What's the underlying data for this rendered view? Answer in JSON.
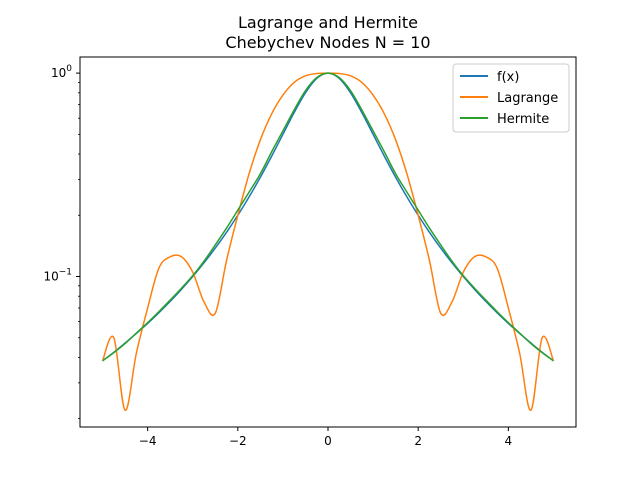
{
  "chart_data": {
    "type": "line",
    "title": "Lagrange and Hermite",
    "subtitle": "Chebychev Nodes N = 10",
    "xlabel": "",
    "ylabel": "",
    "xlim": [
      -5.5,
      5.5
    ],
    "ylim": [
      0.0182,
      1.2
    ],
    "yscale": "log",
    "grid": false,
    "legend_position": "top-right",
    "x_ticks": [
      {
        "value": -4,
        "label": "−4"
      },
      {
        "value": -2,
        "label": "−2"
      },
      {
        "value": 0,
        "label": "0"
      },
      {
        "value": 2,
        "label": "2"
      },
      {
        "value": 4,
        "label": "4"
      }
    ],
    "y_ticks": [
      {
        "value": 0.1,
        "base": "10",
        "exp": "−1"
      },
      {
        "value": 1,
        "base": "10",
        "exp": "0"
      }
    ],
    "x": [
      -5.0,
      -4.75,
      -4.5,
      -4.25,
      -4.0,
      -3.75,
      -3.5,
      -3.25,
      -3.0,
      -2.75,
      -2.5,
      -2.25,
      -2.0,
      -1.75,
      -1.5,
      -1.25,
      -1.0,
      -0.75,
      -0.5,
      -0.25,
      0.0,
      0.25,
      0.5,
      0.75,
      1.0,
      1.25,
      1.5,
      1.75,
      2.0,
      2.25,
      2.5,
      2.75,
      3.0,
      3.25,
      3.5,
      3.75,
      4.0,
      4.25,
      4.5,
      4.75,
      5.0
    ],
    "series": [
      {
        "name": "f(x)",
        "color": "#1f77b4",
        "values": [
          0.0385,
          0.0424,
          0.0471,
          0.0525,
          0.0588,
          0.0664,
          0.0755,
          0.0865,
          0.1,
          0.1168,
          0.1379,
          0.165,
          0.2,
          0.2462,
          0.3077,
          0.3902,
          0.5,
          0.64,
          0.8,
          0.9412,
          1.0,
          0.9412,
          0.8,
          0.64,
          0.5,
          0.3902,
          0.3077,
          0.2462,
          0.2,
          0.165,
          0.1379,
          0.1168,
          0.1,
          0.0865,
          0.0755,
          0.0664,
          0.0588,
          0.0525,
          0.0471,
          0.0424,
          0.0385
        ]
      },
      {
        "name": "Lagrange",
        "color": "#ff7f0e",
        "values": [
          0.0385,
          0.05,
          0.022,
          0.042,
          0.07,
          0.11,
          0.125,
          0.125,
          0.105,
          0.075,
          0.066,
          0.12,
          0.2,
          0.32,
          0.47,
          0.63,
          0.78,
          0.9,
          0.97,
          0.995,
          1.0,
          0.995,
          0.97,
          0.9,
          0.78,
          0.63,
          0.47,
          0.32,
          0.2,
          0.12,
          0.066,
          0.075,
          0.105,
          0.125,
          0.125,
          0.11,
          0.07,
          0.042,
          0.022,
          0.05,
          0.0385
        ]
      },
      {
        "name": "Hermite",
        "color": "#2ca02c",
        "values": [
          0.0385,
          0.0422,
          0.0468,
          0.0527,
          0.0593,
          0.0672,
          0.0766,
          0.0876,
          0.101,
          0.119,
          0.143,
          0.173,
          0.212,
          0.26,
          0.32,
          0.41,
          0.52,
          0.66,
          0.82,
          0.95,
          1.0,
          0.95,
          0.82,
          0.66,
          0.52,
          0.41,
          0.32,
          0.26,
          0.212,
          0.173,
          0.143,
          0.119,
          0.101,
          0.0876,
          0.0766,
          0.0672,
          0.0593,
          0.0527,
          0.0468,
          0.0422,
          0.0385
        ]
      }
    ]
  }
}
